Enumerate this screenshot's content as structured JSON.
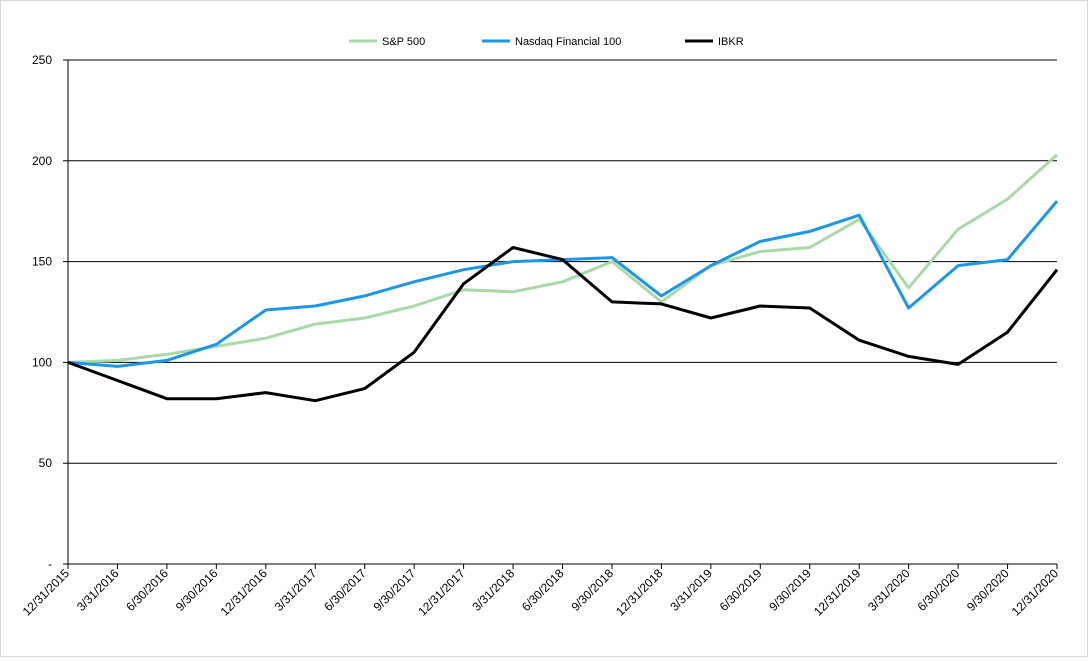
{
  "chart_data": {
    "type": "line",
    "title": "",
    "xlabel": "",
    "ylabel": "",
    "ylim": [
      0,
      250
    ],
    "yticks": [
      0,
      50,
      100,
      150,
      200,
      250
    ],
    "ytick_labels": [
      "-",
      "50",
      "100",
      "150",
      "200",
      "250"
    ],
    "grid": "horizontal",
    "legend_position": "top-center",
    "categories": [
      "12/31/2015",
      "3/31/2016",
      "6/30/2016",
      "9/30/2016",
      "12/31/2016",
      "3/31/2017",
      "6/30/2017",
      "9/30/2017",
      "12/31/2017",
      "3/31/2018",
      "6/30/2018",
      "9/30/2018",
      "12/31/2018",
      "3/31/2019",
      "6/30/2019",
      "9/30/2019",
      "12/31/2019",
      "3/31/2020",
      "6/30/2020",
      "9/30/2020",
      "12/31/2020"
    ],
    "series": [
      {
        "name": "S&P 500",
        "color": "#a9d9a9",
        "values": [
          100,
          101,
          104,
          108,
          112,
          119,
          122,
          128,
          136,
          135,
          140,
          150,
          130,
          148,
          155,
          157,
          171,
          137,
          166,
          181,
          203
        ]
      },
      {
        "name": "Nasdaq Financial 100",
        "color": "#1e96e6",
        "values": [
          100,
          98,
          101,
          109,
          126,
          128,
          133,
          140,
          146,
          150,
          151,
          152,
          133,
          148,
          160,
          165,
          173,
          127,
          148,
          151,
          180
        ]
      },
      {
        "name": "IBKR",
        "color": "#000000",
        "values": [
          100,
          91,
          82,
          82,
          85,
          81,
          87,
          105,
          139,
          157,
          151,
          130,
          129,
          122,
          128,
          127,
          111,
          103,
          99,
          115,
          146
        ]
      }
    ]
  }
}
